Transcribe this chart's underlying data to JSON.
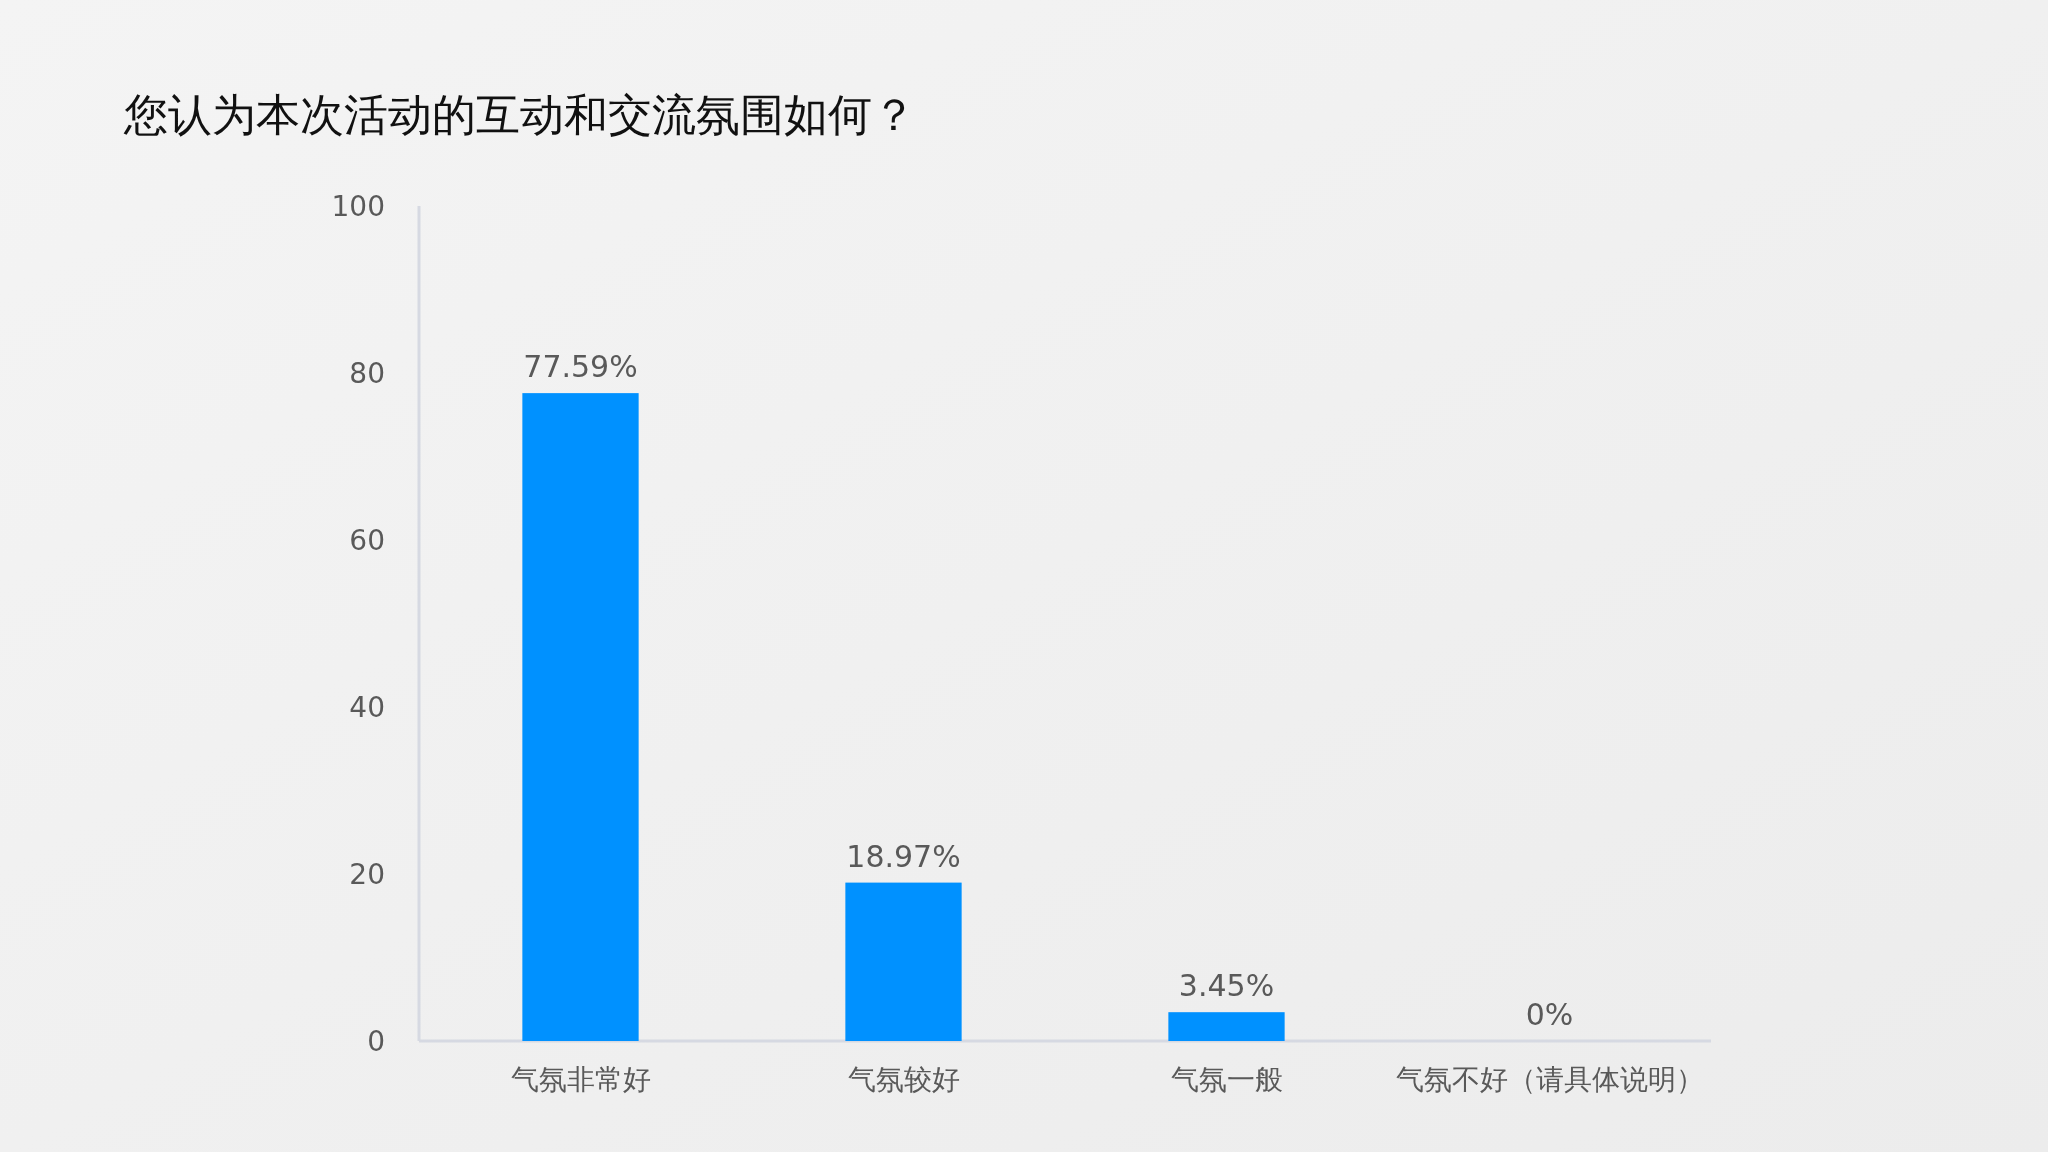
{
  "chart_data": {
    "type": "bar",
    "title": "您认为本次活动的互动和交流氛围如何？",
    "categories": [
      "气氛非常好",
      "气氛较好",
      "气氛一般",
      "气氛不好（请具体说明）"
    ],
    "values": [
      77.59,
      18.97,
      3.45,
      0
    ],
    "value_labels": [
      "77.59%",
      "18.97%",
      "3.45%",
      "0%"
    ],
    "color": "#0091ff",
    "ylim": [
      0,
      100
    ],
    "yticks": [
      0,
      20,
      40,
      60,
      80,
      100
    ]
  }
}
